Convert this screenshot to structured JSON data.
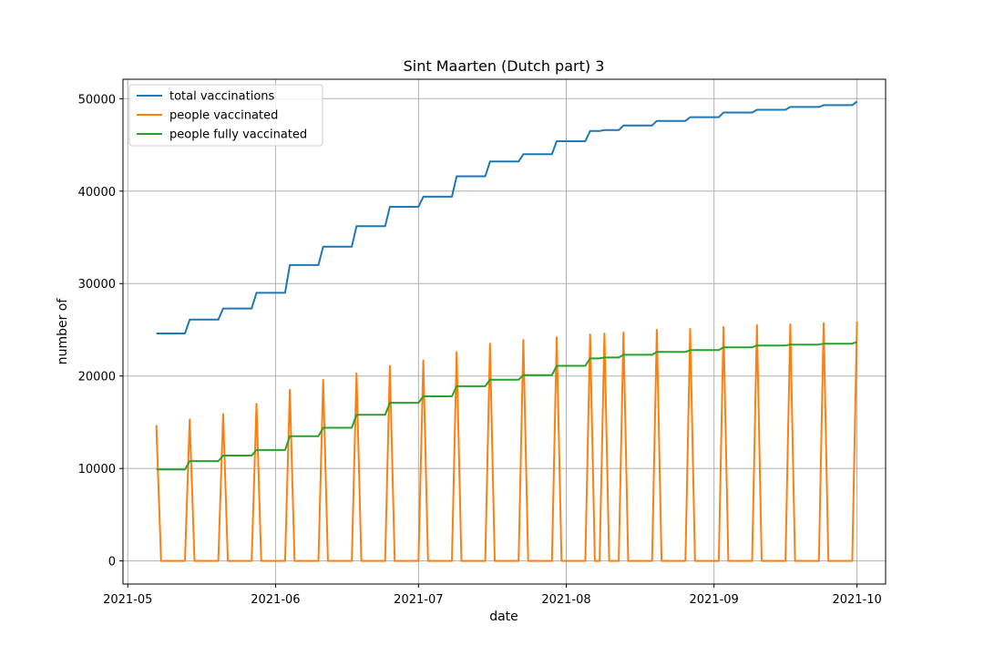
{
  "chart_data": {
    "type": "line",
    "title": "Sint Maarten (Dutch part) 3",
    "xlabel": "date",
    "ylabel": "number of",
    "xlim": [
      "2021-04-30",
      "2021-10-07"
    ],
    "ylim": [
      -2500,
      52100
    ],
    "x_ticks": [
      "2021-05-01",
      "2021-06-01",
      "2021-07-01",
      "2021-08-01",
      "2021-09-01",
      "2021-10-01"
    ],
    "x_tick_labels": [
      "2021-05",
      "2021-06",
      "2021-07",
      "2021-08",
      "2021-09",
      "2021-10"
    ],
    "y_ticks": [
      0,
      10000,
      20000,
      30000,
      40000,
      50000
    ],
    "y_tick_labels": [
      "0",
      "10000",
      "20000",
      "30000",
      "40000",
      "50000"
    ],
    "grid": true,
    "legend_position": "upper-left",
    "series": [
      {
        "name": "total vaccinations",
        "color": "#1f77b4",
        "points": [
          [
            "2021-05-07",
            24600
          ],
          [
            "2021-05-13",
            24600
          ],
          [
            "2021-05-14",
            26100
          ],
          [
            "2021-05-20",
            26100
          ],
          [
            "2021-05-21",
            27300
          ],
          [
            "2021-05-27",
            27300
          ],
          [
            "2021-05-28",
            29000
          ],
          [
            "2021-06-03",
            29000
          ],
          [
            "2021-06-04",
            32000
          ],
          [
            "2021-06-10",
            32000
          ],
          [
            "2021-06-11",
            34000
          ],
          [
            "2021-06-17",
            34000
          ],
          [
            "2021-06-18",
            36200
          ],
          [
            "2021-06-24",
            36200
          ],
          [
            "2021-06-25",
            38300
          ],
          [
            "2021-07-01",
            38300
          ],
          [
            "2021-07-02",
            39400
          ],
          [
            "2021-07-08",
            39400
          ],
          [
            "2021-07-09",
            41600
          ],
          [
            "2021-07-15",
            41600
          ],
          [
            "2021-07-16",
            43200
          ],
          [
            "2021-07-22",
            43200
          ],
          [
            "2021-07-23",
            44000
          ],
          [
            "2021-07-29",
            44000
          ],
          [
            "2021-07-30",
            45400
          ],
          [
            "2021-08-05",
            45400
          ],
          [
            "2021-08-06",
            46500
          ],
          [
            "2021-08-08",
            46500
          ],
          [
            "2021-08-09",
            46600
          ],
          [
            "2021-08-12",
            46600
          ],
          [
            "2021-08-13",
            47100
          ],
          [
            "2021-08-19",
            47100
          ],
          [
            "2021-08-20",
            47600
          ],
          [
            "2021-08-26",
            47600
          ],
          [
            "2021-08-27",
            48000
          ],
          [
            "2021-09-02",
            48000
          ],
          [
            "2021-09-03",
            48500
          ],
          [
            "2021-09-09",
            48500
          ],
          [
            "2021-09-10",
            48800
          ],
          [
            "2021-09-16",
            48800
          ],
          [
            "2021-09-17",
            49100
          ],
          [
            "2021-09-23",
            49100
          ],
          [
            "2021-09-24",
            49300
          ],
          [
            "2021-09-30",
            49300
          ],
          [
            "2021-10-01",
            49700
          ]
        ]
      },
      {
        "name": "people vaccinated",
        "color": "#ff7f0e",
        "points": [
          [
            "2021-05-07",
            14700
          ],
          [
            "2021-05-08",
            0
          ],
          [
            "2021-05-13",
            0
          ],
          [
            "2021-05-14",
            15300
          ],
          [
            "2021-05-15",
            0
          ],
          [
            "2021-05-20",
            0
          ],
          [
            "2021-05-21",
            15900
          ],
          [
            "2021-05-22",
            0
          ],
          [
            "2021-05-27",
            0
          ],
          [
            "2021-05-28",
            17000
          ],
          [
            "2021-05-29",
            0
          ],
          [
            "2021-06-03",
            0
          ],
          [
            "2021-06-04",
            18500
          ],
          [
            "2021-06-05",
            0
          ],
          [
            "2021-06-10",
            0
          ],
          [
            "2021-06-11",
            19600
          ],
          [
            "2021-06-12",
            0
          ],
          [
            "2021-06-17",
            0
          ],
          [
            "2021-06-18",
            20300
          ],
          [
            "2021-06-19",
            0
          ],
          [
            "2021-06-24",
            0
          ],
          [
            "2021-06-25",
            21100
          ],
          [
            "2021-06-26",
            0
          ],
          [
            "2021-07-01",
            0
          ],
          [
            "2021-07-02",
            21700
          ],
          [
            "2021-07-03",
            0
          ],
          [
            "2021-07-08",
            0
          ],
          [
            "2021-07-09",
            22600
          ],
          [
            "2021-07-10",
            0
          ],
          [
            "2021-07-15",
            0
          ],
          [
            "2021-07-16",
            23500
          ],
          [
            "2021-07-17",
            0
          ],
          [
            "2021-07-22",
            0
          ],
          [
            "2021-07-23",
            23900
          ],
          [
            "2021-07-24",
            0
          ],
          [
            "2021-07-29",
            0
          ],
          [
            "2021-07-30",
            24200
          ],
          [
            "2021-07-31",
            0
          ],
          [
            "2021-08-05",
            0
          ],
          [
            "2021-08-06",
            24500
          ],
          [
            "2021-08-07",
            0
          ],
          [
            "2021-08-08",
            0
          ],
          [
            "2021-08-09",
            24600
          ],
          [
            "2021-08-10",
            0
          ],
          [
            "2021-08-12",
            0
          ],
          [
            "2021-08-13",
            24700
          ],
          [
            "2021-08-14",
            0
          ],
          [
            "2021-08-19",
            0
          ],
          [
            "2021-08-20",
            25000
          ],
          [
            "2021-08-21",
            0
          ],
          [
            "2021-08-26",
            0
          ],
          [
            "2021-08-27",
            25100
          ],
          [
            "2021-08-28",
            0
          ],
          [
            "2021-09-02",
            0
          ],
          [
            "2021-09-03",
            25300
          ],
          [
            "2021-09-04",
            0
          ],
          [
            "2021-09-09",
            0
          ],
          [
            "2021-09-10",
            25500
          ],
          [
            "2021-09-11",
            0
          ],
          [
            "2021-09-16",
            0
          ],
          [
            "2021-09-17",
            25600
          ],
          [
            "2021-09-18",
            0
          ],
          [
            "2021-09-23",
            0
          ],
          [
            "2021-09-24",
            25700
          ],
          [
            "2021-09-25",
            0
          ],
          [
            "2021-09-30",
            0
          ],
          [
            "2021-10-01",
            25900
          ]
        ]
      },
      {
        "name": "people fully vaccinated",
        "color": "#2ca02c",
        "points": [
          [
            "2021-05-07",
            9900
          ],
          [
            "2021-05-13",
            9900
          ],
          [
            "2021-05-14",
            10800
          ],
          [
            "2021-05-20",
            10800
          ],
          [
            "2021-05-21",
            11400
          ],
          [
            "2021-05-27",
            11400
          ],
          [
            "2021-05-28",
            12000
          ],
          [
            "2021-06-03",
            12000
          ],
          [
            "2021-06-04",
            13500
          ],
          [
            "2021-06-10",
            13500
          ],
          [
            "2021-06-11",
            14400
          ],
          [
            "2021-06-17",
            14400
          ],
          [
            "2021-06-18",
            15800
          ],
          [
            "2021-06-24",
            15800
          ],
          [
            "2021-06-25",
            17100
          ],
          [
            "2021-07-01",
            17100
          ],
          [
            "2021-07-02",
            17800
          ],
          [
            "2021-07-08",
            17800
          ],
          [
            "2021-07-09",
            18900
          ],
          [
            "2021-07-15",
            18900
          ],
          [
            "2021-07-16",
            19600
          ],
          [
            "2021-07-22",
            19600
          ],
          [
            "2021-07-23",
            20100
          ],
          [
            "2021-07-29",
            20100
          ],
          [
            "2021-07-30",
            21100
          ],
          [
            "2021-08-05",
            21100
          ],
          [
            "2021-08-06",
            21900
          ],
          [
            "2021-08-08",
            21900
          ],
          [
            "2021-08-09",
            22000
          ],
          [
            "2021-08-12",
            22000
          ],
          [
            "2021-08-13",
            22300
          ],
          [
            "2021-08-19",
            22300
          ],
          [
            "2021-08-20",
            22600
          ],
          [
            "2021-08-26",
            22600
          ],
          [
            "2021-08-27",
            22800
          ],
          [
            "2021-09-02",
            22800
          ],
          [
            "2021-09-03",
            23100
          ],
          [
            "2021-09-09",
            23100
          ],
          [
            "2021-09-10",
            23300
          ],
          [
            "2021-09-16",
            23300
          ],
          [
            "2021-09-17",
            23400
          ],
          [
            "2021-09-23",
            23400
          ],
          [
            "2021-09-24",
            23500
          ],
          [
            "2021-09-30",
            23500
          ],
          [
            "2021-10-01",
            23700
          ]
        ]
      }
    ]
  }
}
